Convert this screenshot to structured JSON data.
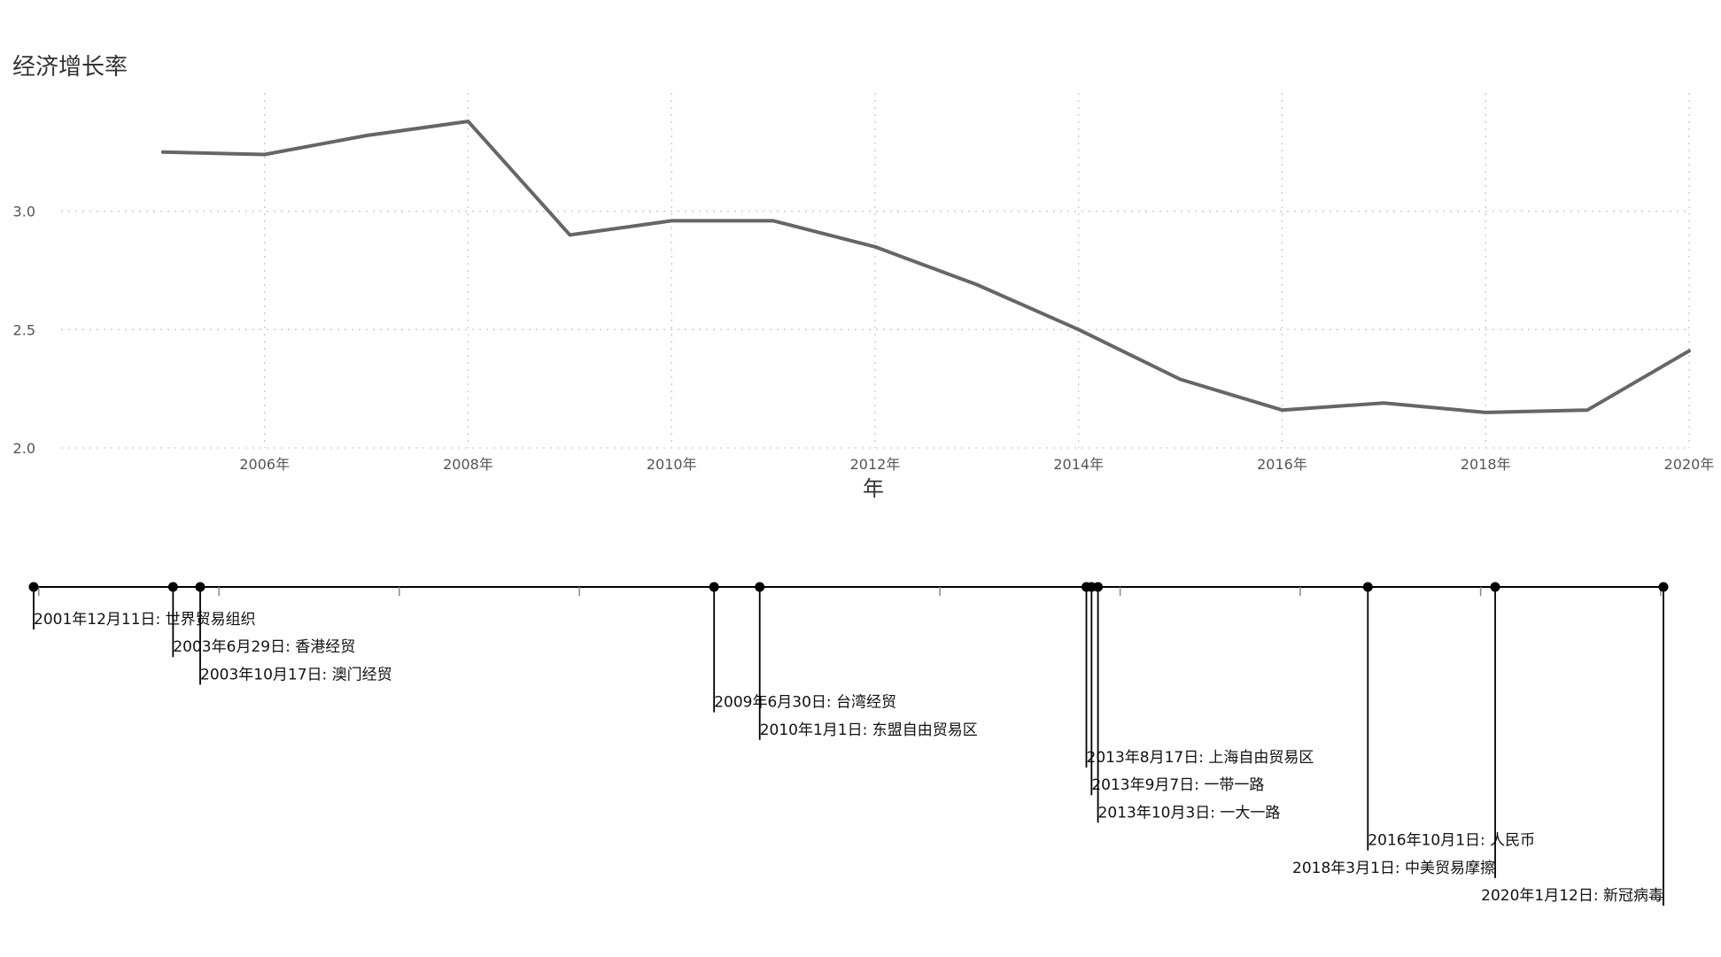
{
  "chart_data": [
    {
      "type": "line",
      "title": "经济增长率",
      "xlabel": "年",
      "ylabel": "",
      "x": [
        2005,
        2006,
        2007,
        2008,
        2009,
        2010,
        2011,
        2012,
        2013,
        2014,
        2015,
        2016,
        2017,
        2018,
        2019,
        2020
      ],
      "values": [
        3.25,
        3.24,
        3.32,
        3.38,
        2.9,
        2.96,
        2.96,
        2.85,
        2.69,
        2.5,
        2.29,
        2.16,
        2.19,
        2.15,
        2.16,
        2.41
      ],
      "xlim": [
        2004.0,
        2020.0
      ],
      "ylim": [
        2.0,
        3.5
      ],
      "x_ticks": [
        2006,
        2008,
        2010,
        2012,
        2014,
        2016,
        2018,
        2020
      ],
      "x_tick_labels": [
        "2006年",
        "2008年",
        "2010年",
        "2012年",
        "2014年",
        "2016年",
        "2018年",
        "2020年"
      ],
      "y_ticks": [
        2.0,
        2.5,
        3.0
      ],
      "y_tick_labels": [
        "2.0",
        "2.5",
        "3.0"
      ],
      "grid": true,
      "line_color": "#666666"
    },
    {
      "type": "timeline",
      "range": [
        "2001-12-11",
        "2020-01-12"
      ],
      "events": [
        {
          "date": "2001-12-11",
          "label": "2001年12月11日: 世界贸易组织"
        },
        {
          "date": "2003-06-29",
          "label": "2003年6月29日: 香港经贸"
        },
        {
          "date": "2003-10-17",
          "label": "2003年10月17日: 澳门经贸"
        },
        {
          "date": "2009-06-30",
          "label": "2009年6月30日: 台湾经贸"
        },
        {
          "date": "2010-01-01",
          "label": "2010年1月1日: 东盟自由贸易区"
        },
        {
          "date": "2013-08-17",
          "label": "2013年8月17日: 上海自由贸易区"
        },
        {
          "date": "2013-09-07",
          "label": "2013年9月7日: 一带一路"
        },
        {
          "date": "2013-10-03",
          "label": "2013年10月3日: 一大一路"
        },
        {
          "date": "2016-10-01",
          "label": "2016年10月1日: 人民币"
        },
        {
          "date": "2018-03-01",
          "label": "2018年3月1日: 中美贸易摩擦"
        },
        {
          "date": "2020-01-12",
          "label": "2020年1月12日: 新冠病毒"
        }
      ],
      "line_color": "#000000"
    }
  ]
}
